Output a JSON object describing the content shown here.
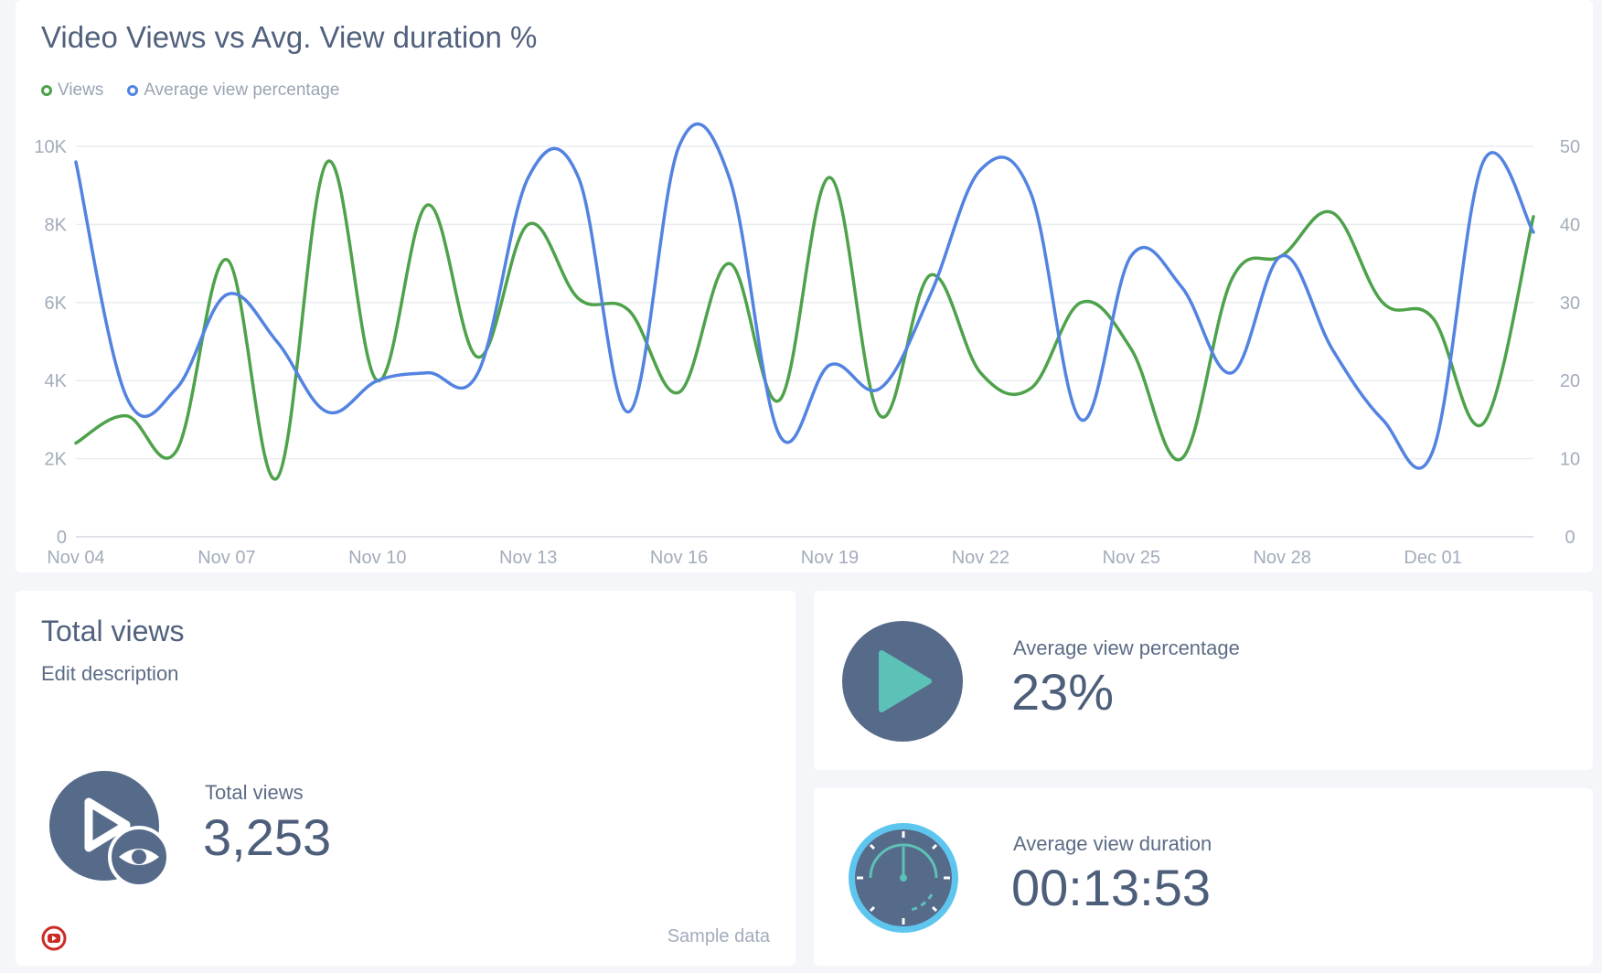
{
  "chart_card": {
    "title": "Video Views vs Avg. View duration %"
  },
  "chart_data": {
    "type": "line",
    "title": "Video Views vs Avg. View duration %",
    "legend_position": "top-left",
    "grid": true,
    "x": [
      "Nov 04",
      "Nov 05",
      "Nov 06",
      "Nov 07",
      "Nov 08",
      "Nov 09",
      "Nov 10",
      "Nov 11",
      "Nov 12",
      "Nov 13",
      "Nov 14",
      "Nov 15",
      "Nov 16",
      "Nov 17",
      "Nov 18",
      "Nov 19",
      "Nov 20",
      "Nov 21",
      "Nov 22",
      "Nov 23",
      "Nov 24",
      "Nov 25",
      "Nov 26",
      "Nov 27",
      "Nov 28",
      "Nov 29",
      "Nov 30",
      "Dec 01",
      "Dec 02",
      "Dec 03"
    ],
    "x_tick_labels": [
      "Nov 04",
      "Nov 07",
      "Nov 10",
      "Nov 13",
      "Nov 16",
      "Nov 19",
      "Nov 22",
      "Nov 25",
      "Nov 28",
      "Dec 01"
    ],
    "y_left": {
      "ticks": [
        "0",
        "2K",
        "4K",
        "6K",
        "8K",
        "10K"
      ],
      "lim": [
        0,
        10000
      ]
    },
    "y_right": {
      "ticks": [
        "0",
        "10",
        "20",
        "30",
        "40",
        "50"
      ],
      "lim": [
        0,
        50
      ]
    },
    "series": [
      {
        "name": "Views",
        "color": "#4ea24b",
        "axis": "left",
        "values": [
          2400,
          3100,
          2200,
          7100,
          1500,
          9600,
          4000,
          8500,
          4600,
          8000,
          6100,
          5800,
          3700,
          7000,
          3500,
          9200,
          3100,
          6700,
          4200,
          3800,
          6000,
          4800,
          2000,
          6600,
          7200,
          8300,
          6000,
          5600,
          2900,
          8200
        ]
      },
      {
        "name": "Average view percentage",
        "color": "#5383e0",
        "axis": "right",
        "values": [
          48,
          18,
          19,
          31,
          25,
          16,
          20,
          21,
          21,
          46,
          46,
          16,
          50,
          46,
          13,
          22,
          19,
          31,
          47,
          44,
          15,
          36,
          32,
          21,
          36,
          24,
          15,
          11,
          48,
          39
        ]
      }
    ]
  },
  "total_card": {
    "title": "Total views",
    "description": "Edit description",
    "metric_label": "Total views",
    "metric_value": "3,253",
    "footer": "Sample data",
    "icon": "play-eye-icon",
    "source_icon": "youtube-icon"
  },
  "avg_pct_card": {
    "label": "Average view percentage",
    "value": "23%",
    "icon": "play-icon"
  },
  "avg_dur_card": {
    "label": "Average view duration",
    "value": "00:13:53",
    "icon": "gauge-icon"
  },
  "colors": {
    "views": "#4ea24b",
    "avg_pct": "#5383e0",
    "icon_dark": "#566a8a",
    "teal": "#5cc1b6",
    "gauge_ring": "#5ec6ee"
  }
}
